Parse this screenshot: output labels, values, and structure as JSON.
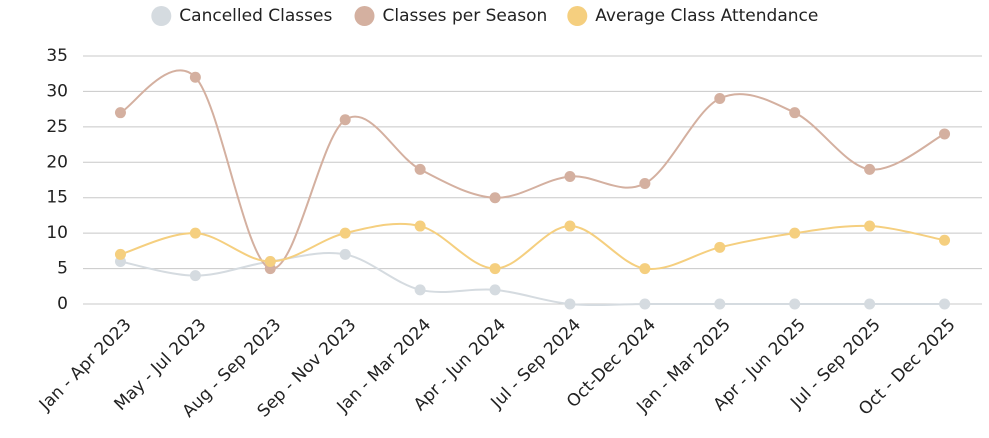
{
  "chart_data": {
    "type": "line",
    "categories": [
      "Jan - Apr 2023",
      "May - Jul 2023",
      "Aug - Sep 2023",
      "Sep - Nov 2023",
      "Jan - Mar 2024",
      "Apr - Jun 2024",
      "Jul - Sep 2024",
      "Oct-Dec 2024",
      "Jan - Mar 2025",
      "Apr - Jun 2025",
      "Jul - Sep 2025",
      "Oct - Dec 2025"
    ],
    "series": [
      {
        "name": "Cancelled Classes",
        "color": "#d5dbe0",
        "values": [
          6,
          4,
          6,
          7,
          2,
          2,
          0,
          0,
          0,
          0,
          0,
          0
        ]
      },
      {
        "name": "Classes per Season",
        "color": "#d4b0a0",
        "values": [
          27,
          32,
          5,
          26,
          19,
          15,
          18,
          17,
          29,
          27,
          19,
          24
        ]
      },
      {
        "name": "Average Class Attendance",
        "color": "#f5cf7f",
        "values": [
          7,
          10,
          6,
          10,
          11,
          5,
          11,
          5,
          8,
          10,
          11,
          9
        ]
      }
    ],
    "ylim": [
      0,
      35
    ],
    "yticks": [
      0,
      5,
      10,
      15,
      20,
      25,
      30,
      35
    ],
    "grid": true,
    "legend": "top"
  }
}
